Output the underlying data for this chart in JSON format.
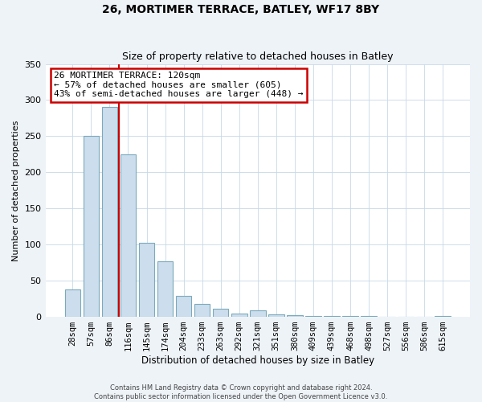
{
  "title": "26, MORTIMER TERRACE, BATLEY, WF17 8BY",
  "subtitle": "Size of property relative to detached houses in Batley",
  "xlabel": "Distribution of detached houses by size in Batley",
  "ylabel": "Number of detached properties",
  "bar_labels": [
    "28sqm",
    "57sqm",
    "86sqm",
    "116sqm",
    "145sqm",
    "174sqm",
    "204sqm",
    "233sqm",
    "263sqm",
    "292sqm",
    "321sqm",
    "351sqm",
    "380sqm",
    "409sqm",
    "439sqm",
    "468sqm",
    "498sqm",
    "527sqm",
    "556sqm",
    "586sqm",
    "615sqm"
  ],
  "bar_values": [
    38,
    250,
    291,
    225,
    103,
    77,
    29,
    18,
    11,
    5,
    9,
    3,
    2,
    1,
    1,
    1,
    1,
    0,
    0,
    0,
    1
  ],
  "bar_color": "#ccdded",
  "bar_edge_color": "#7aaabb",
  "vline_color": "#cc0000",
  "annotation_title": "26 MORTIMER TERRACE: 120sqm",
  "annotation_line1": "← 57% of detached houses are smaller (605)",
  "annotation_line2": "43% of semi-detached houses are larger (448) →",
  "annotation_box_edge_color": "#cc0000",
  "ylim": [
    0,
    350
  ],
  "yticks": [
    0,
    50,
    100,
    150,
    200,
    250,
    300,
    350
  ],
  "footer1": "Contains HM Land Registry data © Crown copyright and database right 2024.",
  "footer2": "Contains public sector information licensed under the Open Government Licence v3.0.",
  "background_color": "#eef3f8",
  "plot_bg_color": "#ffffff",
  "title_fontsize": 10,
  "subtitle_fontsize": 9,
  "ylabel_fontsize": 8,
  "xlabel_fontsize": 8.5,
  "tick_fontsize": 7.5,
  "footer_fontsize": 6,
  "annotation_fontsize": 8
}
